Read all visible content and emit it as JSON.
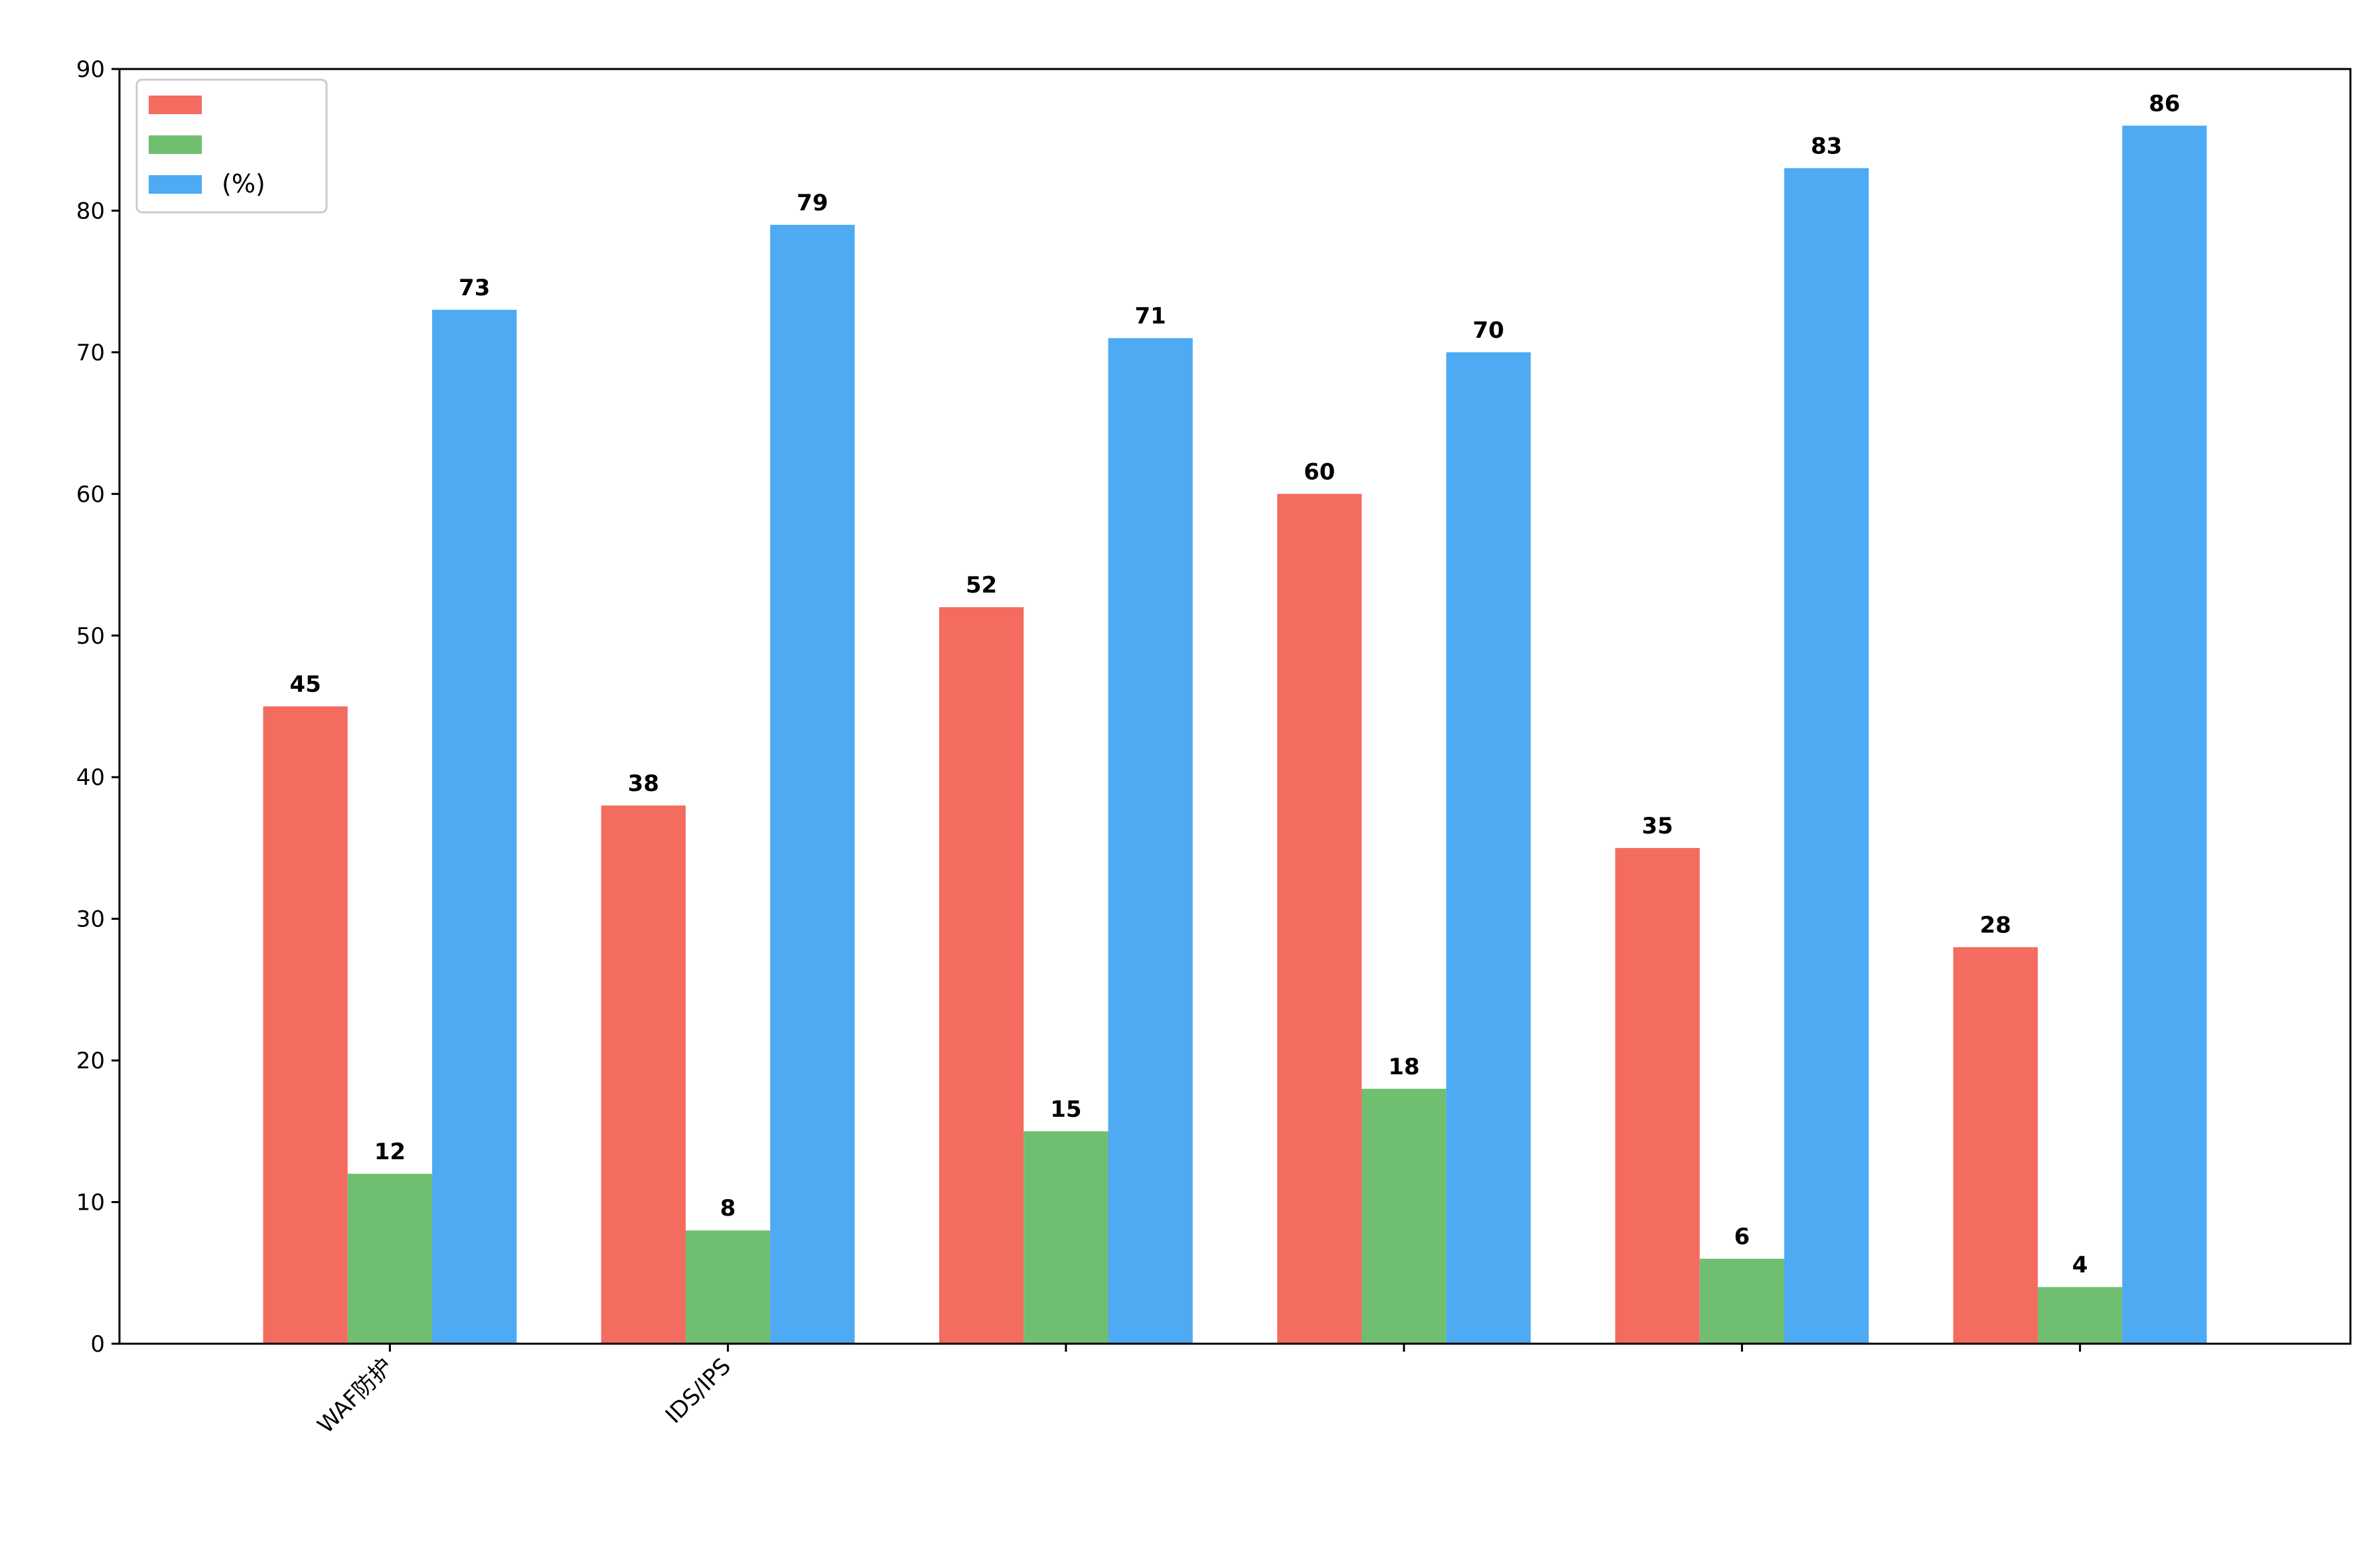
{
  "chart_data": {
    "type": "bar",
    "title": "",
    "xlabel": "",
    "ylabel": "",
    "categories": [
      "WAF防护",
      "IDS/IPS",
      "",
      "",
      "",
      ""
    ],
    "series": [
      {
        "name": "",
        "color": "#f46b5f",
        "values": [
          45,
          38,
          52,
          60,
          35,
          28
        ]
      },
      {
        "name": "",
        "color": "#70bf70",
        "values": [
          12,
          8,
          15,
          18,
          6,
          4
        ]
      },
      {
        "name": "(%)",
        "color": "#4daaf3",
        "values": [
          73,
          79,
          71,
          70,
          83,
          86
        ]
      }
    ],
    "data_labels": [
      [
        "45",
        "38",
        "52",
        "60",
        "35",
        "28"
      ],
      [
        "12",
        "8",
        "15",
        "18",
        "6",
        "4"
      ],
      [
        "73",
        "79",
        "71",
        "70",
        "83",
        "86"
      ]
    ],
    "ylim": [
      0,
      90
    ],
    "yticks": [
      0,
      10,
      20,
      30,
      40,
      50,
      60,
      70,
      80,
      90
    ],
    "ytick_labels": [
      "0",
      "10",
      "20",
      "30",
      "40",
      "50",
      "60",
      "70",
      "80",
      "90"
    ],
    "grid": false,
    "legend_position": "top-left"
  }
}
